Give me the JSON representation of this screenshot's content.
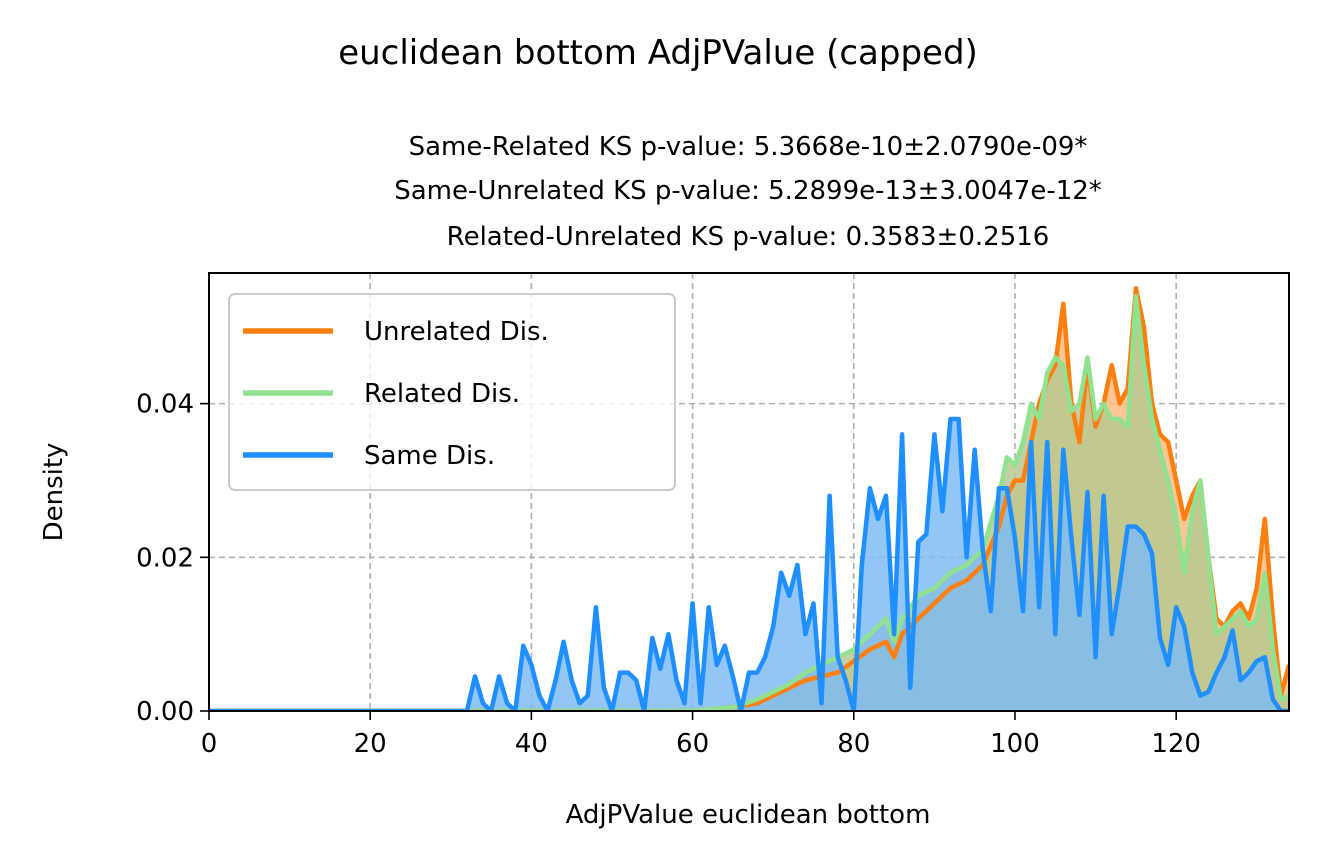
{
  "chart_data": {
    "type": "area",
    "title": "euclidean bottom AdjPValue (capped)",
    "subtitle_lines": [
      "Same-Related KS p-value: 5.3668e-10±2.0790e-09*",
      "Same-Unrelated KS p-value: 5.2899e-13±3.0047e-12*",
      "Related-Unrelated KS p-value: 0.3583±0.2516"
    ],
    "xlabel": "AdjPValue euclidean bottom",
    "ylabel": "Density",
    "xlim": [
      0,
      134
    ],
    "ylim": [
      0,
      0.057
    ],
    "xticks": [
      0,
      20,
      40,
      60,
      80,
      100,
      120
    ],
    "yticks": [
      0.0,
      0.02,
      0.04
    ],
    "ytick_labels": [
      "0.00",
      "0.02",
      "0.04"
    ],
    "grid": true,
    "legend_position": "upper-left",
    "series": [
      {
        "name": "Unrelated Dis.",
        "color": "#ff7f0e",
        "fill": "#ffbb80",
        "points": [
          [
            0,
            0
          ],
          [
            60,
            0
          ],
          [
            65,
            0.0005
          ],
          [
            68,
            0.001
          ],
          [
            70,
            0.002
          ],
          [
            72,
            0.003
          ],
          [
            74,
            0.004
          ],
          [
            76,
            0.0045
          ],
          [
            78,
            0.005
          ],
          [
            80,
            0.0065
          ],
          [
            82,
            0.008
          ],
          [
            84,
            0.009
          ],
          [
            85,
            0.007
          ],
          [
            86,
            0.01
          ],
          [
            88,
            0.012
          ],
          [
            90,
            0.014
          ],
          [
            92,
            0.016
          ],
          [
            94,
            0.017
          ],
          [
            96,
            0.019
          ],
          [
            98,
            0.024
          ],
          [
            99,
            0.028
          ],
          [
            100,
            0.03
          ],
          [
            101,
            0.03
          ],
          [
            102,
            0.035
          ],
          [
            103,
            0.04
          ],
          [
            104,
            0.043
          ],
          [
            105,
            0.045
          ],
          [
            106,
            0.053
          ],
          [
            107,
            0.04
          ],
          [
            108,
            0.035
          ],
          [
            109,
            0.045
          ],
          [
            110,
            0.037
          ],
          [
            111,
            0.04
          ],
          [
            112,
            0.045
          ],
          [
            113,
            0.04
          ],
          [
            114,
            0.042
          ],
          [
            115,
            0.055
          ],
          [
            116,
            0.05
          ],
          [
            117,
            0.04
          ],
          [
            118,
            0.036
          ],
          [
            119,
            0.035
          ],
          [
            120,
            0.03
          ],
          [
            121,
            0.025
          ],
          [
            122,
            0.028
          ],
          [
            123,
            0.03
          ],
          [
            124,
            0.02
          ],
          [
            125,
            0.012
          ],
          [
            126,
            0.011
          ],
          [
            127,
            0.013
          ],
          [
            128,
            0.014
          ],
          [
            129,
            0.012
          ],
          [
            130,
            0.016
          ],
          [
            131,
            0.025
          ],
          [
            132,
            0.012
          ],
          [
            133,
            0.002
          ],
          [
            134,
            0.006
          ]
        ]
      },
      {
        "name": "Related Dis.",
        "color": "#90e290",
        "fill": "#b9c890",
        "points": [
          [
            0,
            0
          ],
          [
            60,
            0
          ],
          [
            65,
            0.0005
          ],
          [
            68,
            0.0015
          ],
          [
            70,
            0.0025
          ],
          [
            72,
            0.0035
          ],
          [
            74,
            0.005
          ],
          [
            76,
            0.006
          ],
          [
            78,
            0.007
          ],
          [
            80,
            0.008
          ],
          [
            82,
            0.01
          ],
          [
            84,
            0.012
          ],
          [
            85,
            0.009
          ],
          [
            86,
            0.012
          ],
          [
            88,
            0.015
          ],
          [
            90,
            0.016
          ],
          [
            92,
            0.018
          ],
          [
            94,
            0.019
          ],
          [
            96,
            0.021
          ],
          [
            98,
            0.028
          ],
          [
            99,
            0.033
          ],
          [
            100,
            0.032
          ],
          [
            101,
            0.035
          ],
          [
            102,
            0.04
          ],
          [
            103,
            0.038
          ],
          [
            104,
            0.044
          ],
          [
            105,
            0.046
          ],
          [
            106,
            0.045
          ],
          [
            107,
            0.039
          ],
          [
            108,
            0.04
          ],
          [
            109,
            0.046
          ],
          [
            110,
            0.038
          ],
          [
            111,
            0.04
          ],
          [
            112,
            0.038
          ],
          [
            113,
            0.038
          ],
          [
            114,
            0.037
          ],
          [
            115,
            0.054
          ],
          [
            116,
            0.045
          ],
          [
            117,
            0.038
          ],
          [
            118,
            0.034
          ],
          [
            119,
            0.03
          ],
          [
            120,
            0.025
          ],
          [
            121,
            0.018
          ],
          [
            122,
            0.026
          ],
          [
            123,
            0.03
          ],
          [
            124,
            0.02
          ],
          [
            125,
            0.01
          ],
          [
            126,
            0.011
          ],
          [
            127,
            0.012
          ],
          [
            128,
            0.013
          ],
          [
            129,
            0.011
          ],
          [
            130,
            0.012
          ],
          [
            131,
            0.018
          ],
          [
            132,
            0.008
          ],
          [
            133,
            0.0015
          ],
          [
            134,
            0.002
          ]
        ]
      },
      {
        "name": "Same Dis.",
        "color": "#1f8fff",
        "fill": "#7fbcf2",
        "points": [
          [
            0,
            0
          ],
          [
            32,
            0
          ],
          [
            33,
            0.0045
          ],
          [
            34,
            0.001
          ],
          [
            35,
            0
          ],
          [
            36,
            0.0045
          ],
          [
            37,
            0.001
          ],
          [
            38,
            0
          ],
          [
            39,
            0.0085
          ],
          [
            40,
            0.006
          ],
          [
            41,
            0.002
          ],
          [
            42,
            0
          ],
          [
            43,
            0.004
          ],
          [
            44,
            0.009
          ],
          [
            45,
            0.004
          ],
          [
            46,
            0.001
          ],
          [
            47,
            0.002
          ],
          [
            48,
            0.0135
          ],
          [
            49,
            0.003
          ],
          [
            50,
            0
          ],
          [
            51,
            0.005
          ],
          [
            52,
            0.005
          ],
          [
            53,
            0.004
          ],
          [
            54,
            0
          ],
          [
            55,
            0.0095
          ],
          [
            56,
            0.0055
          ],
          [
            57,
            0.01
          ],
          [
            58,
            0.004
          ],
          [
            59,
            0.001
          ],
          [
            60,
            0.014
          ],
          [
            61,
            0.001
          ],
          [
            62,
            0.0135
          ],
          [
            63,
            0.006
          ],
          [
            64,
            0.0085
          ],
          [
            65,
            0.0045
          ],
          [
            66,
            0
          ],
          [
            67,
            0.005
          ],
          [
            68,
            0.005
          ],
          [
            69,
            0.007
          ],
          [
            70,
            0.011
          ],
          [
            71,
            0.018
          ],
          [
            72,
            0.015
          ],
          [
            73,
            0.019
          ],
          [
            74,
            0.01
          ],
          [
            75,
            0.014
          ],
          [
            76,
            0.001
          ],
          [
            77,
            0.028
          ],
          [
            78,
            0.007
          ],
          [
            79,
            0.004
          ],
          [
            80,
            0
          ],
          [
            81,
            0.019
          ],
          [
            82,
            0.029
          ],
          [
            83,
            0.025
          ],
          [
            84,
            0.028
          ],
          [
            85,
            0.01
          ],
          [
            86,
            0.036
          ],
          [
            87,
            0.003
          ],
          [
            88,
            0.022
          ],
          [
            89,
            0.023
          ],
          [
            90,
            0.036
          ],
          [
            91,
            0.026
          ],
          [
            92,
            0.038
          ],
          [
            93,
            0.038
          ],
          [
            94,
            0.02
          ],
          [
            95,
            0.034
          ],
          [
            96,
            0.021
          ],
          [
            97,
            0.013
          ],
          [
            98,
            0.029
          ],
          [
            99,
            0.029
          ],
          [
            100,
            0.0225
          ],
          [
            101,
            0.013
          ],
          [
            102,
            0.035
          ],
          [
            103,
            0.0135
          ],
          [
            104,
            0.035
          ],
          [
            105,
            0.01
          ],
          [
            106,
            0.034
          ],
          [
            107,
            0.0225
          ],
          [
            108,
            0.0125
          ],
          [
            109,
            0.0285
          ],
          [
            110,
            0.007
          ],
          [
            111,
            0.028
          ],
          [
            112,
            0.01
          ],
          [
            113,
            0.0165
          ],
          [
            114,
            0.024
          ],
          [
            115,
            0.024
          ],
          [
            116,
            0.023
          ],
          [
            117,
            0.0205
          ],
          [
            118,
            0.0095
          ],
          [
            119,
            0.006
          ],
          [
            120,
            0.0135
          ],
          [
            121,
            0.011
          ],
          [
            122,
            0.005
          ],
          [
            123,
            0.002
          ],
          [
            124,
            0.0025
          ],
          [
            125,
            0.005
          ],
          [
            126,
            0.007
          ],
          [
            127,
            0.0105
          ],
          [
            128,
            0.004
          ],
          [
            129,
            0.005
          ],
          [
            130,
            0.0065
          ],
          [
            131,
            0.007
          ],
          [
            132,
            0.0015
          ],
          [
            133,
            0
          ],
          [
            134,
            0
          ]
        ]
      }
    ]
  }
}
